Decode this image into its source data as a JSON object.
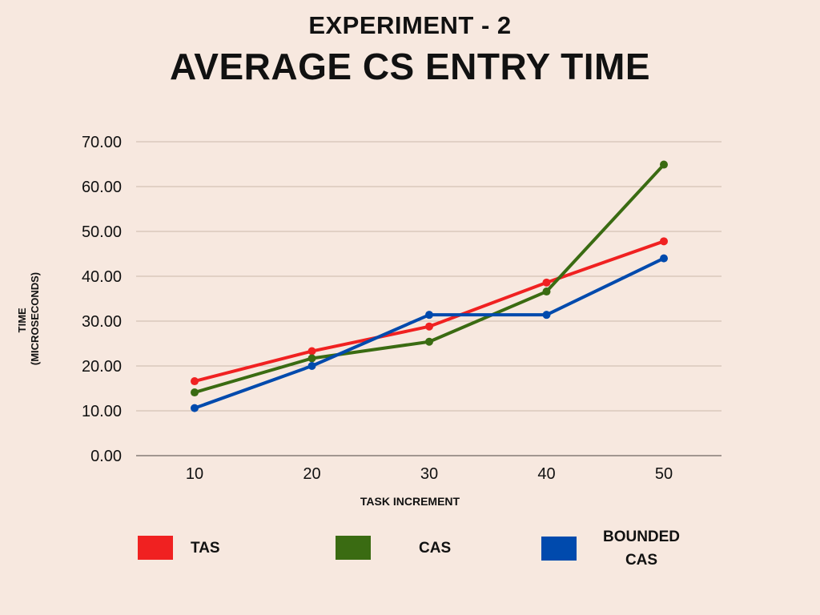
{
  "header": {
    "subtitle": "EXPERIMENT - 2",
    "title": "AVERAGE CS ENTRY TIME"
  },
  "chart_data": {
    "type": "line",
    "title": "AVERAGE CS ENTRY TIME",
    "subtitle": "EXPERIMENT - 2",
    "xlabel": "TASK INCREMENT",
    "ylabel_line1": "TIME",
    "ylabel_line2": "(MICROSECONDS)",
    "categories": [
      "10",
      "20",
      "30",
      "40",
      "50"
    ],
    "yticks": [
      "0.00",
      "10.00",
      "20.00",
      "30.00",
      "40.00",
      "50.00",
      "60.00",
      "70.00"
    ],
    "ylim": [
      0,
      70
    ],
    "grid": true,
    "legend_position": "bottom",
    "series": [
      {
        "name": "TAS",
        "color": "#f02121",
        "values": [
          16.6,
          23.3,
          28.8,
          38.6,
          47.8
        ]
      },
      {
        "name": "CAS",
        "color": "#3a6b12",
        "values": [
          14.1,
          21.7,
          25.4,
          36.6,
          64.9
        ]
      },
      {
        "name": "BOUNDED CAS",
        "color": "#004aad",
        "values": [
          10.6,
          20.0,
          31.4,
          31.4,
          44.0
        ]
      }
    ]
  },
  "legend": {
    "items": [
      {
        "label": "TAS",
        "color": "#f02121"
      },
      {
        "label": "CAS",
        "color": "#3a6b12"
      },
      {
        "label": "BOUNDED CAS",
        "color": "#004aad"
      }
    ]
  }
}
